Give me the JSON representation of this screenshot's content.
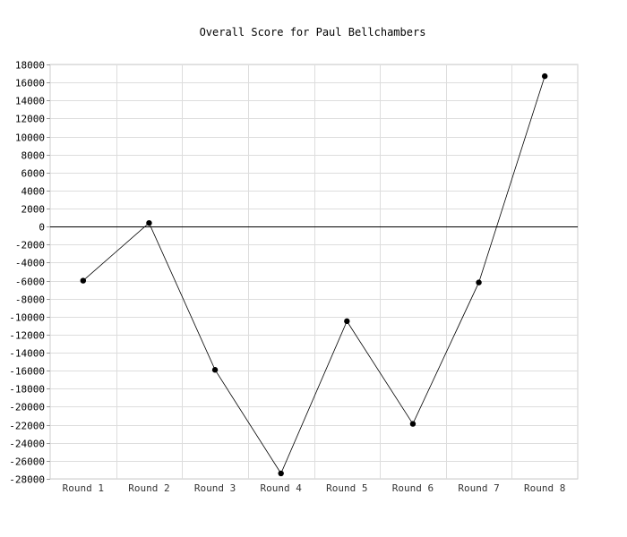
{
  "chart_data": {
    "type": "line",
    "title": "Overall Score for Paul Bellchambers",
    "xlabel": "",
    "ylabel": "",
    "categories": [
      "Round 1",
      "Round 2",
      "Round 3",
      "Round 4",
      "Round 5",
      "Round 6",
      "Round 7",
      "Round 8"
    ],
    "series": [
      {
        "values": [
          -6000,
          400,
          -15900,
          -27400,
          -10500,
          -21900,
          -6200,
          16700
        ]
      }
    ],
    "ylim": [
      -28000,
      18000
    ],
    "ytick_step": 2000,
    "grid": true,
    "legend": "none",
    "colors": {
      "line": "#000000",
      "point": "#000000",
      "grid": "#dddddd",
      "zero_line": "#000000",
      "axis": "#cccccc"
    }
  }
}
